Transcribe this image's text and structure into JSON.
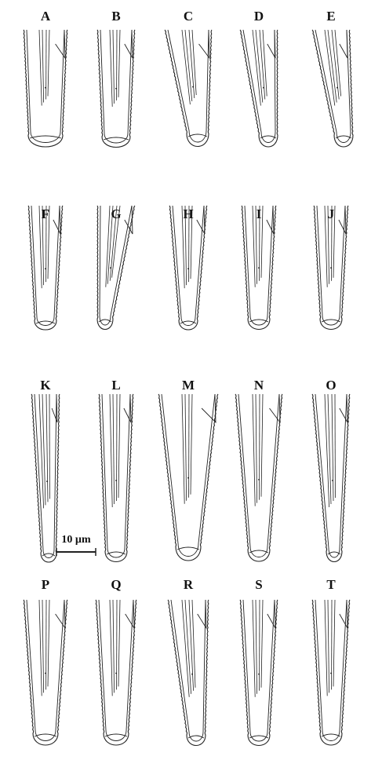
{
  "panels": [
    {
      "label": "A",
      "shape": "wide-blunt"
    },
    {
      "label": "B",
      "shape": "wide-blunt"
    },
    {
      "label": "C",
      "shape": "curved-right"
    },
    {
      "label": "D",
      "shape": "curved-right"
    },
    {
      "label": "E",
      "shape": "curved-right"
    },
    {
      "label": "F",
      "shape": "short-blunt"
    },
    {
      "label": "G",
      "shape": "curved-left"
    },
    {
      "label": "H",
      "shape": "long-narrow"
    },
    {
      "label": "I",
      "shape": "short-blunt"
    },
    {
      "label": "J",
      "shape": "short-blunt"
    },
    {
      "label": "K",
      "shape": "hooked"
    },
    {
      "label": "L",
      "shape": "short-blunt"
    },
    {
      "label": "M",
      "shape": "long-wide"
    },
    {
      "label": "N",
      "shape": "long-narrow"
    },
    {
      "label": "O",
      "shape": "short-blunt"
    },
    {
      "label": "P",
      "shape": "wide-blunt"
    },
    {
      "label": "Q",
      "shape": "wide-blunt"
    },
    {
      "label": "R",
      "shape": "curved-right"
    },
    {
      "label": "S",
      "shape": "wide-blunt"
    },
    {
      "label": "T",
      "shape": "notched"
    }
  ],
  "scale_bar": {
    "label": "10 µm"
  },
  "colors": {
    "ink": "#222222",
    "background": "#ffffff"
  }
}
